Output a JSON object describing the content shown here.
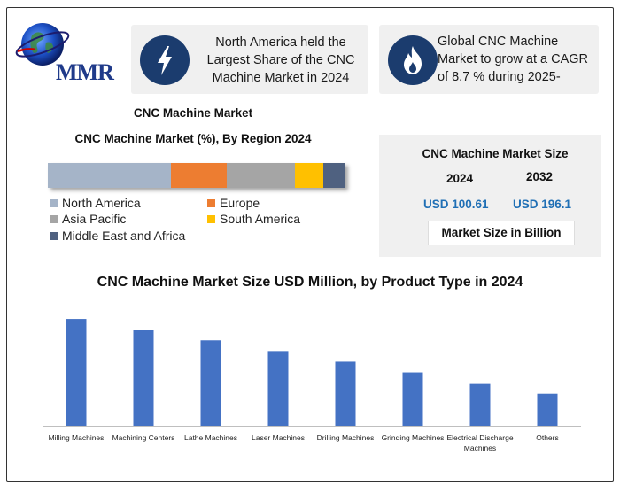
{
  "logo": {
    "text": "MMR"
  },
  "info_left": {
    "icon": "lightning-icon",
    "text": "North America held the Largest Share of the CNC Machine Market in 2024"
  },
  "info_right": {
    "icon": "flame-icon",
    "text": "Global CNC Machine Market to grow at a CAGR of 8.7 % during 2025-"
  },
  "region": {
    "title": "CNC Machine Market",
    "subtitle": "CNC Machine Market (%), By Region 2024",
    "legend": [
      {
        "label": "North America",
        "color": "#a5b4c8"
      },
      {
        "label": "Europe",
        "color": "#ed7d31"
      },
      {
        "label": "Asia Pacific",
        "color": "#a5a5a5"
      },
      {
        "label": "South America",
        "color": "#ffc000"
      },
      {
        "label": "Middle East and Africa",
        "color": "#4f6180"
      }
    ]
  },
  "market_size": {
    "title": "CNC Machine Market Size",
    "year_1": "2024",
    "year_2": "2032",
    "value_1": "USD 100.61",
    "value_2": "USD 196.1",
    "unit": "Market Size in Billion"
  },
  "chart_data": [
    {
      "type": "bar",
      "orientation": "horizontal-stacked",
      "title": "CNC Machine Market (%), By Region 2024",
      "series": [
        {
          "name": "North America",
          "values": [
            41.5
          ]
        },
        {
          "name": "Europe",
          "values": [
            18.5
          ]
        },
        {
          "name": "Asia Pacific",
          "values": [
            23
          ]
        },
        {
          "name": "South America",
          "values": [
            9.5
          ]
        },
        {
          "name": "Middle East and Africa",
          "values": [
            7.5
          ]
        }
      ],
      "xlim": [
        0,
        100
      ],
      "legend_position": "bottom"
    },
    {
      "type": "bar",
      "title": "CNC Machine Market Size USD Million, by Product Type in 2024",
      "categories": [
        "Milling Machines",
        "Machining Centers",
        "Lathe Machines",
        "Laser Machines",
        "Drilling Machines",
        "Grinding Machines",
        "Electrical Discharge Machines",
        "Others"
      ],
      "values": [
        120,
        108,
        96,
        84,
        72,
        60,
        48,
        36
      ],
      "ylim": [
        0,
        130
      ],
      "bar_color": "#4472c4",
      "xlabel": "",
      "ylabel": "",
      "grid": false
    }
  ]
}
